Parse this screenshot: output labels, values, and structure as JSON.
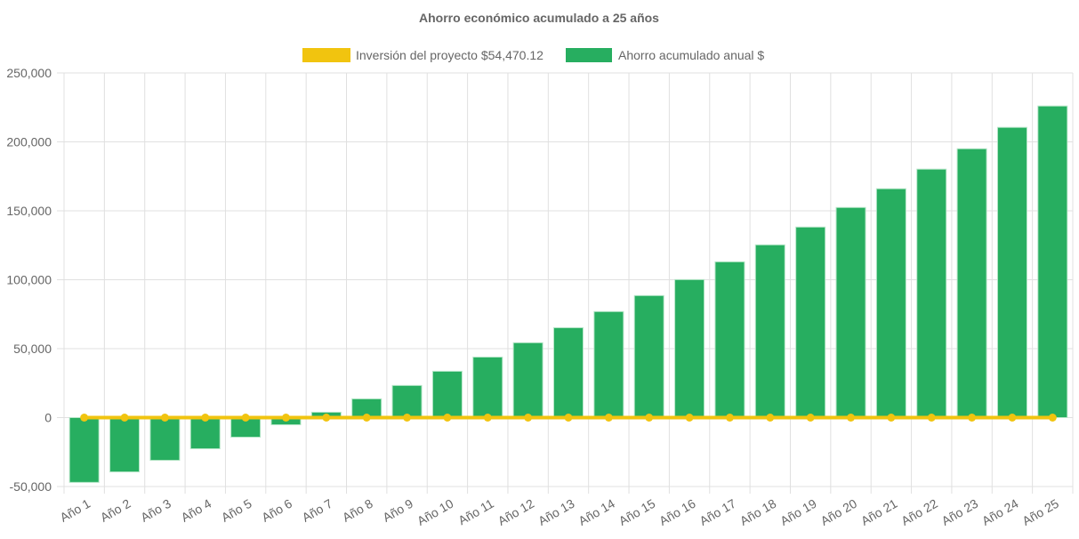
{
  "chart_data": {
    "type": "bar",
    "title": "Ahorro económico acumulado a 25 años",
    "legend_position": "top",
    "categories": [
      "Año 1",
      "Año 2",
      "Año 3",
      "Año 4",
      "Año 5",
      "Año 6",
      "Año 7",
      "Año 8",
      "Año 9",
      "Año 10",
      "Año 11",
      "Año 12",
      "Año 13",
      "Año 14",
      "Año 15",
      "Año 16",
      "Año 17",
      "Año 18",
      "Año 19",
      "Año 20",
      "Año 21",
      "Año 22",
      "Año 23",
      "Año 24",
      "Año 25"
    ],
    "series": [
      {
        "name": "Inversión del proyecto $54,470.12",
        "type": "line",
        "color": "#f1c40f",
        "values": [
          0,
          0,
          0,
          0,
          0,
          0,
          0,
          0,
          0,
          0,
          0,
          0,
          0,
          0,
          0,
          0,
          0,
          0,
          0,
          0,
          0,
          0,
          0,
          0,
          0
        ]
      },
      {
        "name": "Ahorro acumulado anual $",
        "type": "bar",
        "color": "#27ae60",
        "values": [
          -47000,
          -39400,
          -31000,
          -22600,
          -14200,
          -5200,
          3900,
          13600,
          23300,
          33600,
          43900,
          54300,
          65200,
          76900,
          88500,
          100100,
          113000,
          125300,
          138200,
          152400,
          166000,
          180200,
          195000,
          210500,
          226000
        ]
      }
    ],
    "ylim": [
      -50000,
      250000
    ],
    "yticks": [
      "-50,000",
      "0",
      "50,000",
      "100,000",
      "150,000",
      "200,000",
      "250,000"
    ],
    "ytick_values": [
      -50000,
      0,
      50000,
      100000,
      150000,
      200000,
      250000
    ],
    "grid": true,
    "xlabel": "",
    "ylabel": ""
  }
}
